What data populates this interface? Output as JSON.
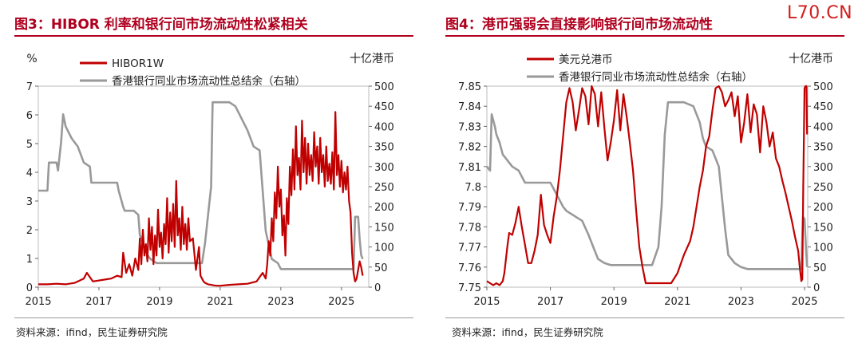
{
  "watermark": "L70.CN",
  "source_note": "资料来源：ifind，民生证券研究院",
  "panels": {
    "left": {
      "title": "图3：HIBOR 利率和银行间市场流动性松紧相关"
    },
    "right": {
      "title": "图4：港币强弱会直接影响银行间市场流动性"
    }
  },
  "chart_data": [
    {
      "type": "line",
      "title": "图3：HIBOR 利率和银行间市场流动性松紧相关",
      "left_axis_unit": "%",
      "right_axis_unit": "十亿港币",
      "ylim_left": [
        0,
        7
      ],
      "ylim_right": [
        0,
        500
      ],
      "y_ticks_left": [
        "0",
        "1",
        "2",
        "3",
        "4",
        "5",
        "6",
        "7"
      ],
      "y_ticks_right": [
        "0",
        "50",
        "100",
        "150",
        "200",
        "250",
        "300",
        "350",
        "400",
        "450",
        "500"
      ],
      "x_ticks": [
        "2015",
        "2017",
        "2019",
        "2021",
        "2023",
        "2025"
      ],
      "xlim": [
        2015,
        2025.9
      ],
      "legend_placement": "top",
      "series": [
        {
          "name": "HIBOR1W",
          "axis": "left",
          "color": "#c00000",
          "x": [
            2015.0,
            2015.3,
            2015.6,
            2015.9,
            2016.2,
            2016.5,
            2016.6,
            2016.8,
            2017.1,
            2017.4,
            2017.6,
            2017.75,
            2017.8,
            2017.9,
            2018.0,
            2018.1,
            2018.2,
            2018.3,
            2018.35,
            2018.4,
            2018.45,
            2018.5,
            2018.55,
            2018.6,
            2018.65,
            2018.7,
            2018.75,
            2018.8,
            2018.85,
            2018.9,
            2018.95,
            2019.0,
            2019.05,
            2019.1,
            2019.15,
            2019.2,
            2019.25,
            2019.3,
            2019.35,
            2019.4,
            2019.45,
            2019.5,
            2019.55,
            2019.6,
            2019.65,
            2019.7,
            2019.75,
            2019.8,
            2019.85,
            2019.9,
            2019.95,
            2020.0,
            2020.1,
            2020.2,
            2020.3,
            2020.35,
            2020.4,
            2020.45,
            2020.5,
            2020.6,
            2020.7,
            2020.8,
            2020.9,
            2021.0,
            2021.3,
            2021.6,
            2021.9,
            2022.2,
            2022.4,
            2022.5,
            2022.55,
            2022.6,
            2022.65,
            2022.7,
            2022.75,
            2022.8,
            2022.85,
            2022.9,
            2022.95,
            2023.0,
            2023.05,
            2023.1,
            2023.15,
            2023.2,
            2023.25,
            2023.3,
            2023.35,
            2023.4,
            2023.45,
            2023.5,
            2023.55,
            2023.6,
            2023.65,
            2023.7,
            2023.75,
            2023.8,
            2023.85,
            2023.9,
            2023.95,
            2024.0,
            2024.05,
            2024.1,
            2024.15,
            2024.2,
            2024.25,
            2024.3,
            2024.35,
            2024.4,
            2024.45,
            2024.5,
            2024.55,
            2024.6,
            2024.65,
            2024.7,
            2024.75,
            2024.8,
            2024.85,
            2024.9,
            2024.95,
            2025.0,
            2025.05,
            2025.1,
            2025.15,
            2025.2,
            2025.25,
            2025.3,
            2025.35,
            2025.4,
            2025.45,
            2025.5,
            2025.55,
            2025.6,
            2025.65,
            2025.7
          ],
          "values": [
            0.1,
            0.1,
            0.12,
            0.1,
            0.15,
            0.3,
            0.5,
            0.2,
            0.25,
            0.3,
            0.4,
            0.35,
            1.2,
            0.5,
            0.8,
            0.4,
            1.0,
            0.6,
            1.7,
            0.8,
            2.0,
            1.1,
            1.5,
            0.9,
            2.4,
            1.3,
            2.1,
            0.8,
            1.8,
            1.1,
            2.7,
            1.4,
            1.9,
            1.0,
            2.2,
            1.5,
            3.1,
            1.2,
            2.6,
            1.6,
            2.9,
            1.4,
            3.7,
            1.8,
            2.4,
            1.3,
            2.8,
            1.5,
            2.2,
            1.3,
            2.4,
            1.6,
            1.7,
            0.6,
            1.4,
            0.4,
            0.3,
            0.2,
            0.15,
            0.1,
            0.08,
            0.06,
            0.05,
            0.05,
            0.08,
            0.1,
            0.12,
            0.2,
            0.5,
            0.3,
            0.8,
            1.6,
            1.1,
            2.4,
            1.6,
            3.3,
            2.4,
            4.2,
            2.8,
            3.4,
            1.8,
            2.5,
            1.1,
            3.1,
            2.2,
            4.2,
            3.2,
            4.8,
            3.4,
            5.6,
            3.9,
            4.5,
            3.4,
            5.8,
            4.0,
            5.2,
            3.6,
            5.0,
            3.9,
            4.6,
            3.7,
            5.4,
            4.2,
            4.9,
            3.6,
            5.2,
            4.0,
            4.6,
            3.5,
            4.9,
            3.7,
            4.3,
            3.6,
            4.7,
            3.4,
            6.1,
            3.9,
            4.6,
            3.5,
            4.4,
            3.3,
            4.0,
            3.4,
            4.2,
            3.0,
            2.6,
            1.2,
            0.5,
            0.2,
            0.3,
            0.6,
            0.9,
            0.7,
            0.4
          ]
        },
        {
          "name": "香港银行同业市场流动性总结余（右轴）",
          "axis": "right",
          "color": "#999999",
          "x": [
            2015.0,
            2015.3,
            2015.35,
            2015.6,
            2015.65,
            2015.75,
            2015.82,
            2015.9,
            2016.1,
            2016.3,
            2016.5,
            2016.7,
            2016.75,
            2017.2,
            2017.6,
            2017.65,
            2017.8,
            2017.85,
            2018.15,
            2018.3,
            2018.35,
            2018.6,
            2018.7,
            2018.9,
            2019.2,
            2019.4,
            2019.6,
            2019.9,
            2020.2,
            2020.4,
            2020.5,
            2020.7,
            2020.75,
            2021.0,
            2021.3,
            2021.5,
            2021.7,
            2021.9,
            2022.1,
            2022.3,
            2022.5,
            2022.7,
            2022.9,
            2023.0,
            2023.2,
            2023.5,
            2023.8,
            2024.0,
            2024.3,
            2024.6,
            2024.9,
            2025.1,
            2025.3,
            2025.4,
            2025.45,
            2025.55,
            2025.6,
            2025.65,
            2025.7
          ],
          "values": [
            240,
            240,
            310,
            310,
            290,
            360,
            430,
            400,
            370,
            350,
            310,
            300,
            260,
            260,
            260,
            240,
            200,
            190,
            190,
            180,
            130,
            80,
            70,
            60,
            60,
            60,
            60,
            60,
            60,
            60,
            110,
            250,
            460,
            460,
            460,
            450,
            420,
            390,
            350,
            340,
            140,
            70,
            60,
            45,
            45,
            45,
            45,
            45,
            45,
            45,
            45,
            45,
            45,
            45,
            175,
            175,
            120,
            80,
            70
          ]
        }
      ]
    },
    {
      "type": "line",
      "title": "图4：港币强弱会直接影响银行间市场流动性",
      "right_axis_unit": "十亿港币",
      "ylim_left": [
        7.75,
        7.85
      ],
      "ylim_right": [
        0,
        500
      ],
      "y_ticks_left": [
        "7.75",
        "7.76",
        "7.77",
        "7.78",
        "7.79",
        "7.8",
        "7.81",
        "7.82",
        "7.83",
        "7.84",
        "7.85"
      ],
      "y_ticks_right": [
        "0",
        "50",
        "100",
        "150",
        "200",
        "250",
        "300",
        "350",
        "400",
        "450",
        "500"
      ],
      "x_ticks": [
        "2015",
        "2017",
        "2019",
        "2021",
        "2023",
        "2025"
      ],
      "xlim": [
        2015,
        2025.1
      ],
      "legend_placement": "top",
      "series": [
        {
          "name": "美元兑港币",
          "axis": "left",
          "color": "#c00000",
          "x": [
            2015.0,
            2015.1,
            2015.2,
            2015.3,
            2015.4,
            2015.5,
            2015.55,
            2015.6,
            2015.65,
            2015.7,
            2015.8,
            2015.9,
            2016.0,
            2016.1,
            2016.2,
            2016.3,
            2016.4,
            2016.5,
            2016.6,
            2016.7,
            2016.8,
            2016.9,
            2017.0,
            2017.1,
            2017.2,
            2017.3,
            2017.4,
            2017.5,
            2017.6,
            2017.7,
            2017.8,
            2017.9,
            2018.0,
            2018.1,
            2018.2,
            2018.3,
            2018.4,
            2018.5,
            2018.6,
            2018.7,
            2018.8,
            2018.9,
            2019.0,
            2019.1,
            2019.2,
            2019.3,
            2019.4,
            2019.5,
            2019.6,
            2019.7,
            2019.8,
            2019.9,
            2020.0,
            2020.2,
            2020.4,
            2020.6,
            2020.8,
            2021.0,
            2021.2,
            2021.4,
            2021.5,
            2021.6,
            2021.7,
            2021.8,
            2021.9,
            2022.0,
            2022.1,
            2022.2,
            2022.3,
            2022.4,
            2022.5,
            2022.6,
            2022.7,
            2022.8,
            2022.9,
            2023.0,
            2023.1,
            2023.2,
            2023.3,
            2023.4,
            2023.5,
            2023.6,
            2023.7,
            2023.8,
            2023.9,
            2024.0,
            2024.1,
            2024.2,
            2024.3,
            2024.4,
            2024.5,
            2024.6,
            2024.7,
            2024.8,
            2024.85,
            2024.9,
            2024.93,
            2024.96,
            2025.0,
            2025.03,
            2025.06,
            2025.08
          ],
          "values": [
            7.753,
            7.752,
            7.751,
            7.752,
            7.751,
            7.753,
            7.757,
            7.764,
            7.771,
            7.777,
            7.776,
            7.782,
            7.79,
            7.78,
            7.771,
            7.762,
            7.762,
            7.768,
            7.776,
            7.796,
            7.781,
            7.776,
            7.772,
            7.785,
            7.795,
            7.808,
            7.825,
            7.842,
            7.849,
            7.842,
            7.828,
            7.838,
            7.849,
            7.845,
            7.831,
            7.85,
            7.846,
            7.83,
            7.847,
            7.829,
            7.813,
            7.822,
            7.833,
            7.848,
            7.828,
            7.846,
            7.835,
            7.822,
            7.808,
            7.788,
            7.77,
            7.76,
            7.752,
            7.752,
            7.752,
            7.752,
            7.752,
            7.757,
            7.766,
            7.773,
            7.78,
            7.79,
            7.8,
            7.808,
            7.82,
            7.825,
            7.838,
            7.849,
            7.85,
            7.847,
            7.84,
            7.843,
            7.847,
            7.835,
            7.845,
            7.822,
            7.832,
            7.846,
            7.827,
            7.841,
            7.836,
            7.817,
            7.84,
            7.832,
            7.82,
            7.827,
            7.814,
            7.81,
            7.803,
            7.797,
            7.79,
            7.783,
            7.775,
            7.768,
            7.76,
            7.753,
            7.754,
            7.8,
            7.849,
            7.85,
            7.85,
            7.826
          ]
        },
        {
          "name": "香港银行同业市场流动性总结余（右轴）",
          "axis": "right",
          "color": "#999999",
          "x": [
            2015.0,
            2015.1,
            2015.15,
            2015.25,
            2015.3,
            2015.4,
            2015.5,
            2015.6,
            2015.8,
            2016.0,
            2016.2,
            2016.3,
            2016.5,
            2016.8,
            2017.0,
            2017.2,
            2017.4,
            2017.5,
            2017.6,
            2017.7,
            2017.8,
            2017.9,
            2018.0,
            2018.2,
            2018.35,
            2018.5,
            2018.7,
            2018.9,
            2019.2,
            2019.5,
            2019.8,
            2020.0,
            2020.2,
            2020.4,
            2020.5,
            2020.6,
            2020.7,
            2020.8,
            2021.0,
            2021.2,
            2021.5,
            2021.7,
            2021.8,
            2021.9,
            2022.1,
            2022.3,
            2022.5,
            2022.6,
            2022.8,
            2023.0,
            2023.2,
            2023.5,
            2023.8,
            2024.0,
            2024.3,
            2024.6,
            2024.8,
            2024.9,
            2024.95,
            2025.0,
            2025.05,
            2025.08
          ],
          "values": [
            300,
            290,
            430,
            400,
            380,
            360,
            330,
            320,
            300,
            290,
            260,
            260,
            260,
            260,
            260,
            230,
            200,
            190,
            185,
            180,
            175,
            170,
            165,
            130,
            100,
            70,
            60,
            55,
            55,
            55,
            55,
            55,
            55,
            100,
            200,
            380,
            460,
            460,
            460,
            460,
            450,
            410,
            370,
            350,
            340,
            300,
            145,
            80,
            60,
            50,
            45,
            45,
            45,
            45,
            45,
            45,
            45,
            45,
            175,
            170,
            90,
            50
          ]
        }
      ]
    }
  ]
}
